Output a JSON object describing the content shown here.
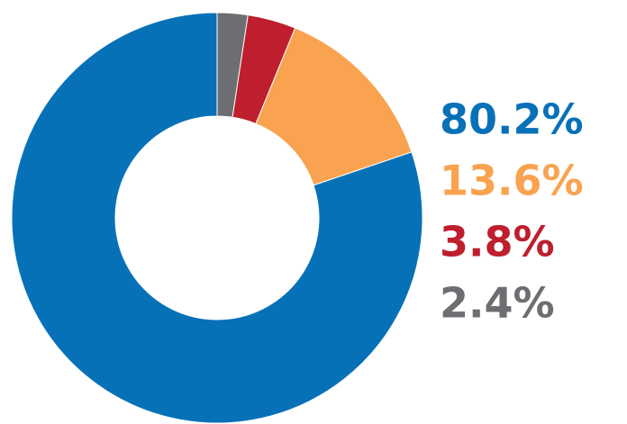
{
  "chart_data": {
    "type": "pie",
    "donut": true,
    "values": [
      80.2,
      13.6,
      3.8,
      2.4
    ],
    "value_labels": [
      "80.2%",
      "13.6%",
      "3.8%",
      "2.4%"
    ],
    "colors": [
      "#0771b8",
      "#f9a350",
      "#be1e2d",
      "#6d6e71"
    ]
  }
}
